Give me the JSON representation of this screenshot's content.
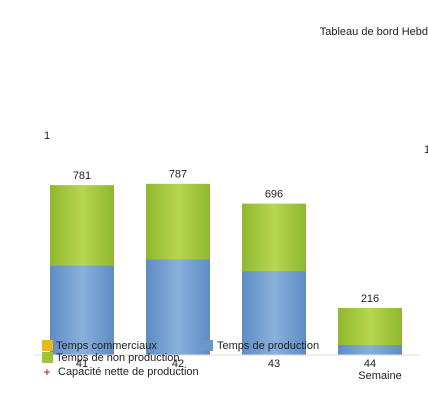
{
  "chart_data": {
    "type": "stacked-bar",
    "title": "Tableau de bord Hebd",
    "y_label": "1",
    "y2_label": "1",
    "x_label": "Semaine",
    "categories": [
      "41",
      "42",
      "43",
      "44"
    ],
    "series": [
      {
        "name": "Temps de production",
        "color": "#6d96c8",
        "values": [
          413,
          441,
          386,
          46
        ]
      },
      {
        "name": "Temps de non production",
        "color": "#9cc43a",
        "values": [
          368,
          346,
          310,
          170
        ]
      }
    ],
    "totals": [
      781,
      787,
      696,
      216
    ],
    "legend_extra": [
      {
        "name": "Temps commerciaux",
        "color": "#e8b91a",
        "marker": "square"
      },
      {
        "name": "Capacité nette de production",
        "color": "#e03030",
        "marker": "plus"
      }
    ],
    "ylim": [
      0,
      800
    ]
  }
}
